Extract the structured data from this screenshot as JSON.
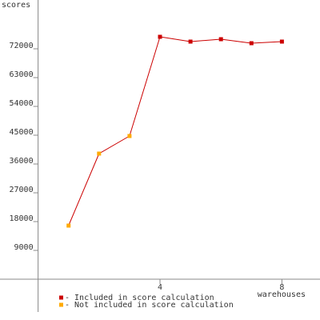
{
  "chart_data": {
    "type": "line",
    "y_label": "scores",
    "x_label": "warehouses",
    "x": [
      1,
      2,
      3,
      4,
      5,
      6,
      7,
      8
    ],
    "line_color": "#cc0000",
    "series": [
      {
        "name": "- Included in score calculation",
        "color": "#cc0000",
        "values": [
          null,
          null,
          null,
          75750,
          74250,
          75000,
          73750,
          74250
        ]
      },
      {
        "name": "- Not included in score calculation",
        "color": "#ffaa00",
        "values": [
          16750,
          39250,
          44750,
          null,
          null,
          null,
          null,
          null
        ]
      }
    ],
    "xlim": [
      -1.25,
      9.25
    ],
    "ylim": [
      -10250,
      87250
    ],
    "xticks": [
      4,
      8
    ],
    "yticks": [
      9000,
      18000,
      27000,
      36000,
      45000,
      54000,
      63000,
      72000
    ]
  }
}
